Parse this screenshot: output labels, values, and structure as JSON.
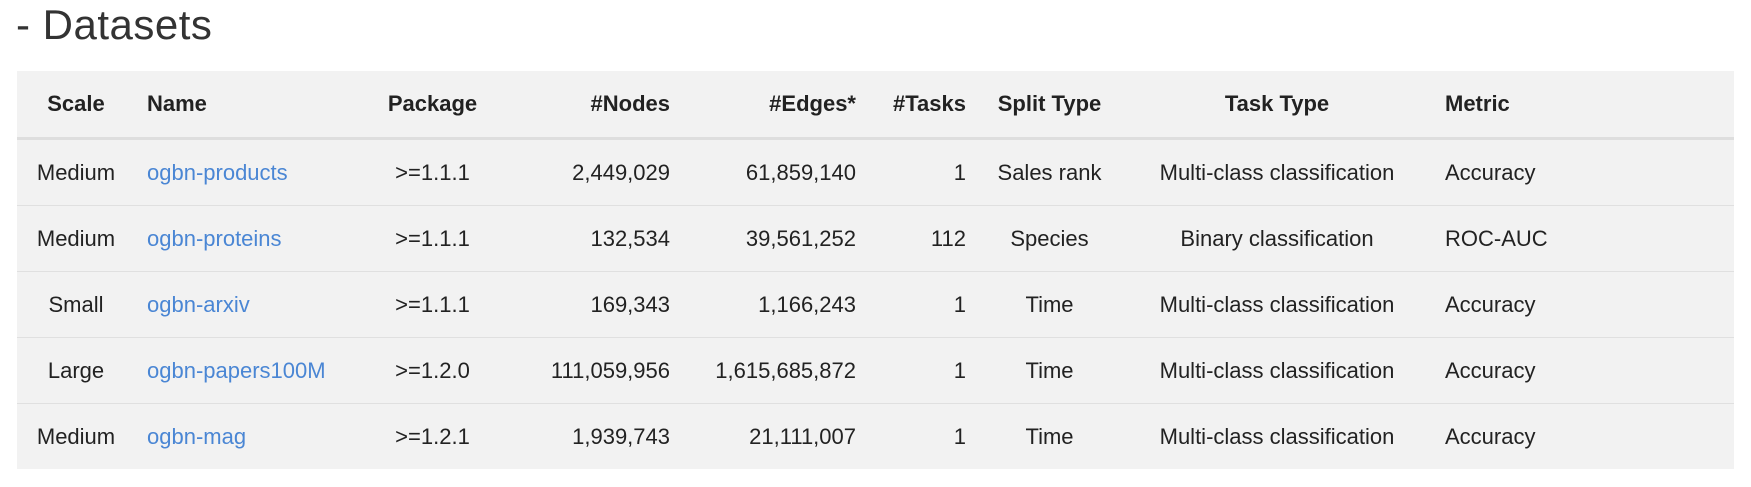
{
  "heading": "- Datasets",
  "table": {
    "columns": [
      "Scale",
      "Name",
      "Package",
      "#Nodes",
      "#Edges*",
      "#Tasks",
      "Split Type",
      "Task Type",
      "Metric"
    ],
    "rows": [
      {
        "scale": "Medium",
        "name": "ogbn-products",
        "package": ">=1.1.1",
        "nodes": "2,449,029",
        "edges": "61,859,140",
        "tasks": "1",
        "split": "Sales rank",
        "task_type": "Multi-class classification",
        "metric": "Accuracy"
      },
      {
        "scale": "Medium",
        "name": "ogbn-proteins",
        "package": ">=1.1.1",
        "nodes": "132,534",
        "edges": "39,561,252",
        "tasks": "112",
        "split": "Species",
        "task_type": "Binary classification",
        "metric": "ROC-AUC"
      },
      {
        "scale": "Small",
        "name": "ogbn-arxiv",
        "package": ">=1.1.1",
        "nodes": "169,343",
        "edges": "1,166,243",
        "tasks": "1",
        "split": "Time",
        "task_type": "Multi-class classification",
        "metric": "Accuracy"
      },
      {
        "scale": "Large",
        "name": "ogbn-papers100M",
        "package": ">=1.2.0",
        "nodes": "111,059,956",
        "edges": "1,615,685,872",
        "tasks": "1",
        "split": "Time",
        "task_type": "Multi-class classification",
        "metric": "Accuracy"
      },
      {
        "scale": "Medium",
        "name": "ogbn-mag",
        "package": ">=1.2.1",
        "nodes": "1,939,743",
        "edges": "21,111,007",
        "tasks": "1",
        "split": "Time",
        "task_type": "Multi-class classification",
        "metric": "Accuracy"
      }
    ]
  },
  "colors": {
    "link": "#4a86d4",
    "table_background": "#f2f2f2",
    "text": "#222222"
  }
}
